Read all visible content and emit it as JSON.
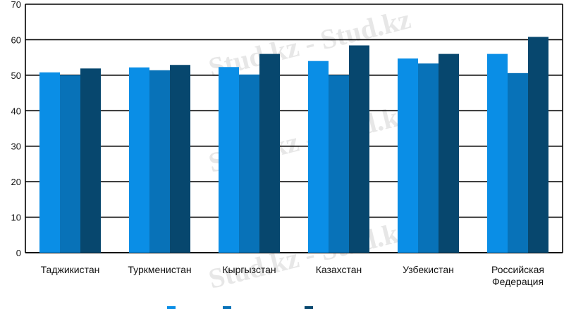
{
  "chart_data": {
    "type": "bar",
    "categories": [
      [
        "Таджикистан"
      ],
      [
        "Туркменистан"
      ],
      [
        "Кыргызстан"
      ],
      [
        "Казахстан"
      ],
      [
        "Узбекистан"
      ],
      [
        "Российская",
        "Федерация"
      ]
    ],
    "series": [
      {
        "color": "#0a8ee6",
        "values": [
          50.8,
          52.2,
          52.3,
          54.0,
          54.7,
          56.0
        ]
      },
      {
        "color": "#0872b8",
        "values": [
          50.0,
          51.4,
          50.2,
          50.0,
          53.3,
          50.6
        ]
      },
      {
        "color": "#07476e",
        "values": [
          51.9,
          52.9,
          56.0,
          58.4,
          56.0,
          60.8
        ]
      }
    ],
    "ylim": [
      0,
      70
    ],
    "yticks": [
      0,
      10,
      20,
      30,
      40,
      50,
      60,
      70
    ],
    "grid": true,
    "title": "",
    "xlabel": "",
    "ylabel": ""
  },
  "watermark": "Stud.kz - Stud.kz"
}
